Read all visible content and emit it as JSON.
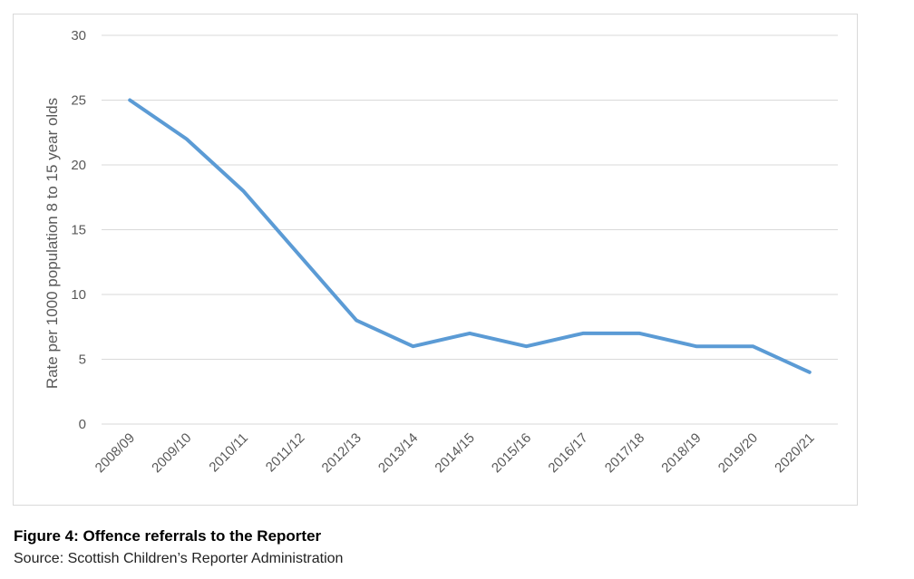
{
  "figure": {
    "title": "Figure 4: Offence referrals to the Reporter",
    "source": "Source: Scottish Children’s Reporter Administration"
  },
  "chart_data": {
    "type": "line",
    "title": "",
    "xlabel": "",
    "ylabel": "Rate per 1000 population 8 to 15 year olds",
    "categories": [
      "2008/09",
      "2009/10",
      "2010/11",
      "2011/12",
      "2012/13",
      "2013/14",
      "2014/15",
      "2015/16",
      "2016/17",
      "2017/18",
      "2018/19",
      "2019/20",
      "2020/21"
    ],
    "series": [
      {
        "values": [
          25,
          22,
          18,
          13,
          8,
          6,
          7,
          6,
          7,
          7,
          6,
          6,
          4
        ],
        "color": "#5b9bd5"
      }
    ],
    "ylim": [
      0,
      30
    ],
    "yticks": [
      0,
      5,
      10,
      15,
      20,
      25,
      30
    ],
    "grid": true,
    "legend": "none"
  }
}
